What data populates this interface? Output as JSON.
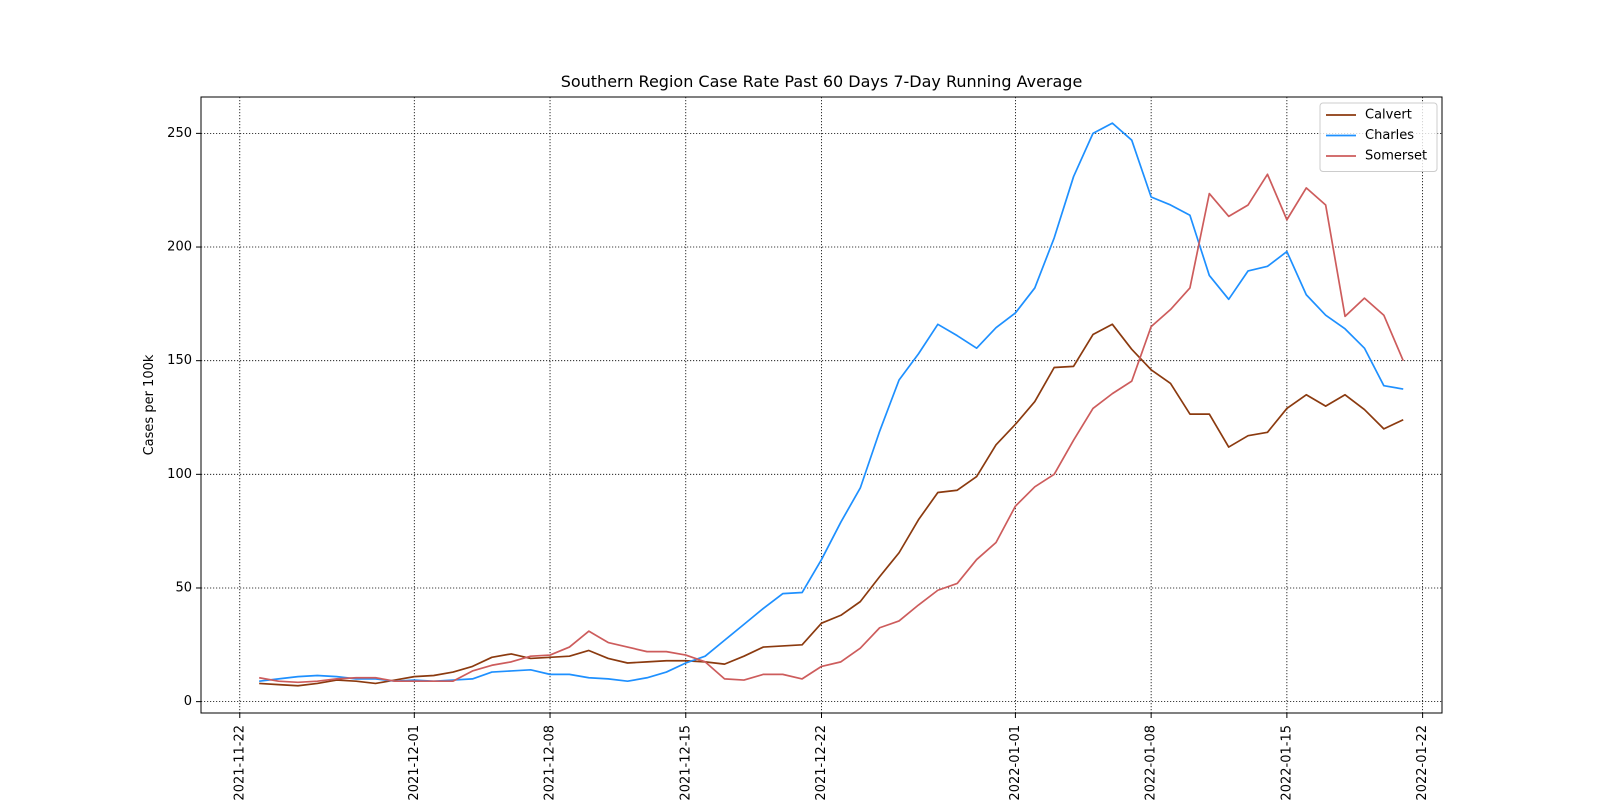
{
  "chart_data": {
    "type": "line",
    "title": "Southern Region Case Rate  Past 60 Days 7-Day Running Average",
    "xlabel": "",
    "ylabel": "Cases per 100k",
    "x_start": "2021-11-23",
    "x_end": "2022-01-20",
    "xlim": [
      "2021-11-20",
      "2022-01-23"
    ],
    "ylim": [
      -5,
      266
    ],
    "x_ticks": [
      "2021-11-22",
      "2021-12-01",
      "2021-12-08",
      "2021-12-15",
      "2021-12-22",
      "2022-01-01",
      "2022-01-08",
      "2022-01-15",
      "2022-01-22"
    ],
    "y_ticks": [
      0,
      50,
      100,
      150,
      200,
      250
    ],
    "grid": true,
    "legend_position": "top-right",
    "series": [
      {
        "name": "Calvert",
        "color": "#8b3a0f",
        "values": [
          8,
          7.5,
          7,
          8,
          9.5,
          9,
          8,
          9.5,
          11,
          11.5,
          13,
          15.5,
          19.5,
          21,
          19,
          19.5,
          20,
          22.5,
          19,
          17,
          17.5,
          18,
          18,
          17.5,
          16.5,
          20,
          24,
          24.5,
          25,
          34.5,
          38,
          44,
          55,
          65.5,
          80,
          92,
          93,
          99,
          113,
          122,
          132,
          147,
          147.5,
          161.5,
          166,
          155,
          146,
          140,
          126.5,
          126.5,
          112,
          117,
          118.5,
          129,
          135,
          130,
          135,
          128.5,
          120,
          124
        ]
      },
      {
        "name": "Charles",
        "color": "#1e90ff",
        "values": [
          9,
          10,
          11,
          11.5,
          11,
          10,
          10,
          9,
          9.5,
          9,
          9.5,
          10,
          13,
          13.5,
          14,
          12,
          12,
          10.5,
          10,
          9,
          10.5,
          13,
          17,
          20,
          27,
          34,
          41,
          47.5,
          48,
          62.5,
          79,
          94,
          119,
          141.5,
          153,
          166,
          161,
          155.5,
          164.5,
          171,
          182,
          204,
          231,
          250,
          254.5,
          247,
          222,
          218.5,
          214,
          187.5,
          177,
          189.5,
          191.5,
          198,
          179,
          170,
          164,
          155.5,
          139,
          137.5
        ]
      },
      {
        "name": "Somerset",
        "color": "#cd5c5c",
        "values": [
          10.5,
          9,
          8.5,
          9,
          10,
          10.5,
          10.5,
          9,
          9,
          9,
          9,
          13.5,
          16,
          17.5,
          20,
          20.5,
          24,
          31,
          26,
          24,
          22,
          22,
          20.5,
          17.5,
          10,
          9.5,
          12,
          12,
          10,
          15.5,
          17.5,
          23.5,
          32.5,
          35.5,
          42.5,
          49,
          52,
          62.5,
          70,
          86,
          94.5,
          100,
          115,
          129,
          135.5,
          141,
          165,
          172.5,
          182,
          223.5,
          213.5,
          218.5,
          232,
          212,
          226,
          218.5,
          169.5,
          177.5,
          170,
          150
        ]
      }
    ]
  }
}
